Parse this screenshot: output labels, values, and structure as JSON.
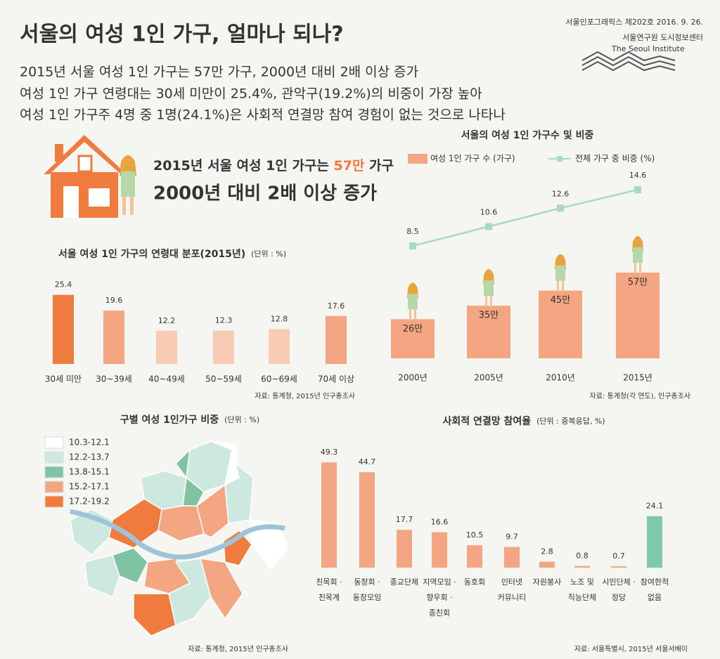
{
  "header": {
    "title": "서울의 여성 1인 가구, 얼마나 되나?",
    "issue": "서울인포그래픽스 제202호 2016. 9. 26.",
    "org": "서울연구원 도시정보센터",
    "org_en": "The Seoul Institute",
    "summary": [
      "2015년 서울 여성 1인 가구는 57만 가구, 2000년 대비 2배 이상 증가",
      "여성 1인 가구 연령대는 30세 미만이 25.4%, 관악구(19.2%)의 비중이 가장 높아",
      "여성 1인 가구주 4명 중 1명(24.1%)은 사회적 연결망 참여 경험이 없는 것으로 나타나"
    ]
  },
  "hero": {
    "line1_pre": "2015년 서울 여성 1인 가구는 ",
    "line1_num": "57만",
    "line1_post": " 가구",
    "line2": "2000년 대비 2배 이상 증가"
  },
  "chart_data": [
    {
      "type": "bar",
      "title": "서울 여성 1인 가구의 연령대 분포(2015년)",
      "unit": "(단위 : %)",
      "categories": [
        "30세 미만",
        "30~39세",
        "40~49세",
        "50~59세",
        "60~69세",
        "70세 이상"
      ],
      "values": [
        25.4,
        19.6,
        12.2,
        12.3,
        12.8,
        17.6
      ],
      "colors": [
        "#f07b3f",
        "#f4a582",
        "#f8cbb4",
        "#f8cbb4",
        "#f8cbb4",
        "#f4a582"
      ],
      "source": "자료: 통계청, 2015년 인구총조사"
    },
    {
      "type": "combo",
      "title": "서울의 여성 1인 가구수 및 비중",
      "categories": [
        "2000년",
        "2005년",
        "2010년",
        "2015년"
      ],
      "series": [
        {
          "name": "여성 1인 가구 수 (가구)",
          "color": "#f4a582",
          "values": [
            26,
            35,
            45,
            57
          ],
          "value_labels": [
            "26만",
            "35만",
            "45만",
            "57만"
          ]
        },
        {
          "name": "전체 가구 중 비중 (%)",
          "color": "#a8d8c8",
          "axis": "y2",
          "values": [
            8.5,
            10.6,
            12.6,
            14.6
          ]
        }
      ],
      "source": "자료: 통계청(각 연도), 인구총조사"
    },
    {
      "type": "choropleth",
      "title": "구별 여성 1인가구 비중",
      "unit": "(단위 : %)",
      "legend": [
        {
          "label": "10.3-12.1",
          "color": "#ffffff"
        },
        {
          "label": "12.2-13.7",
          "color": "#cde9df"
        },
        {
          "label": "13.8-15.1",
          "color": "#7fc3a3"
        },
        {
          "label": "15.2-17.1",
          "color": "#f4a582"
        },
        {
          "label": "17.2-19.2",
          "color": "#f07b3f"
        }
      ],
      "source": "자료: 통계청, 2015년 인구총조사"
    },
    {
      "type": "bar",
      "title": "사회적 연결망 참여율",
      "unit": "(단위 : 중복응답, %)",
      "categories": [
        "친목회 · 친목계",
        "동창회 · 동창모임",
        "종교단체",
        "지역모임 · 향우회 · 종친회",
        "동호회",
        "인터넷 커뮤니티",
        "자원봉사",
        "노조 및 직능단체",
        "시민단체 · 정당",
        "참여한적 없음"
      ],
      "values": [
        49.3,
        44.7,
        17.7,
        16.6,
        10.5,
        9.7,
        2.8,
        0.8,
        0.7,
        24.1
      ],
      "colors": [
        "#f4a582",
        "#f4a582",
        "#f4a582",
        "#f4a582",
        "#f4a582",
        "#f4a582",
        "#f4a582",
        "#f4a582",
        "#f4a582",
        "#7fc8a9"
      ],
      "source": "자료: 서울특별시, 2015년 서울서베이"
    }
  ]
}
